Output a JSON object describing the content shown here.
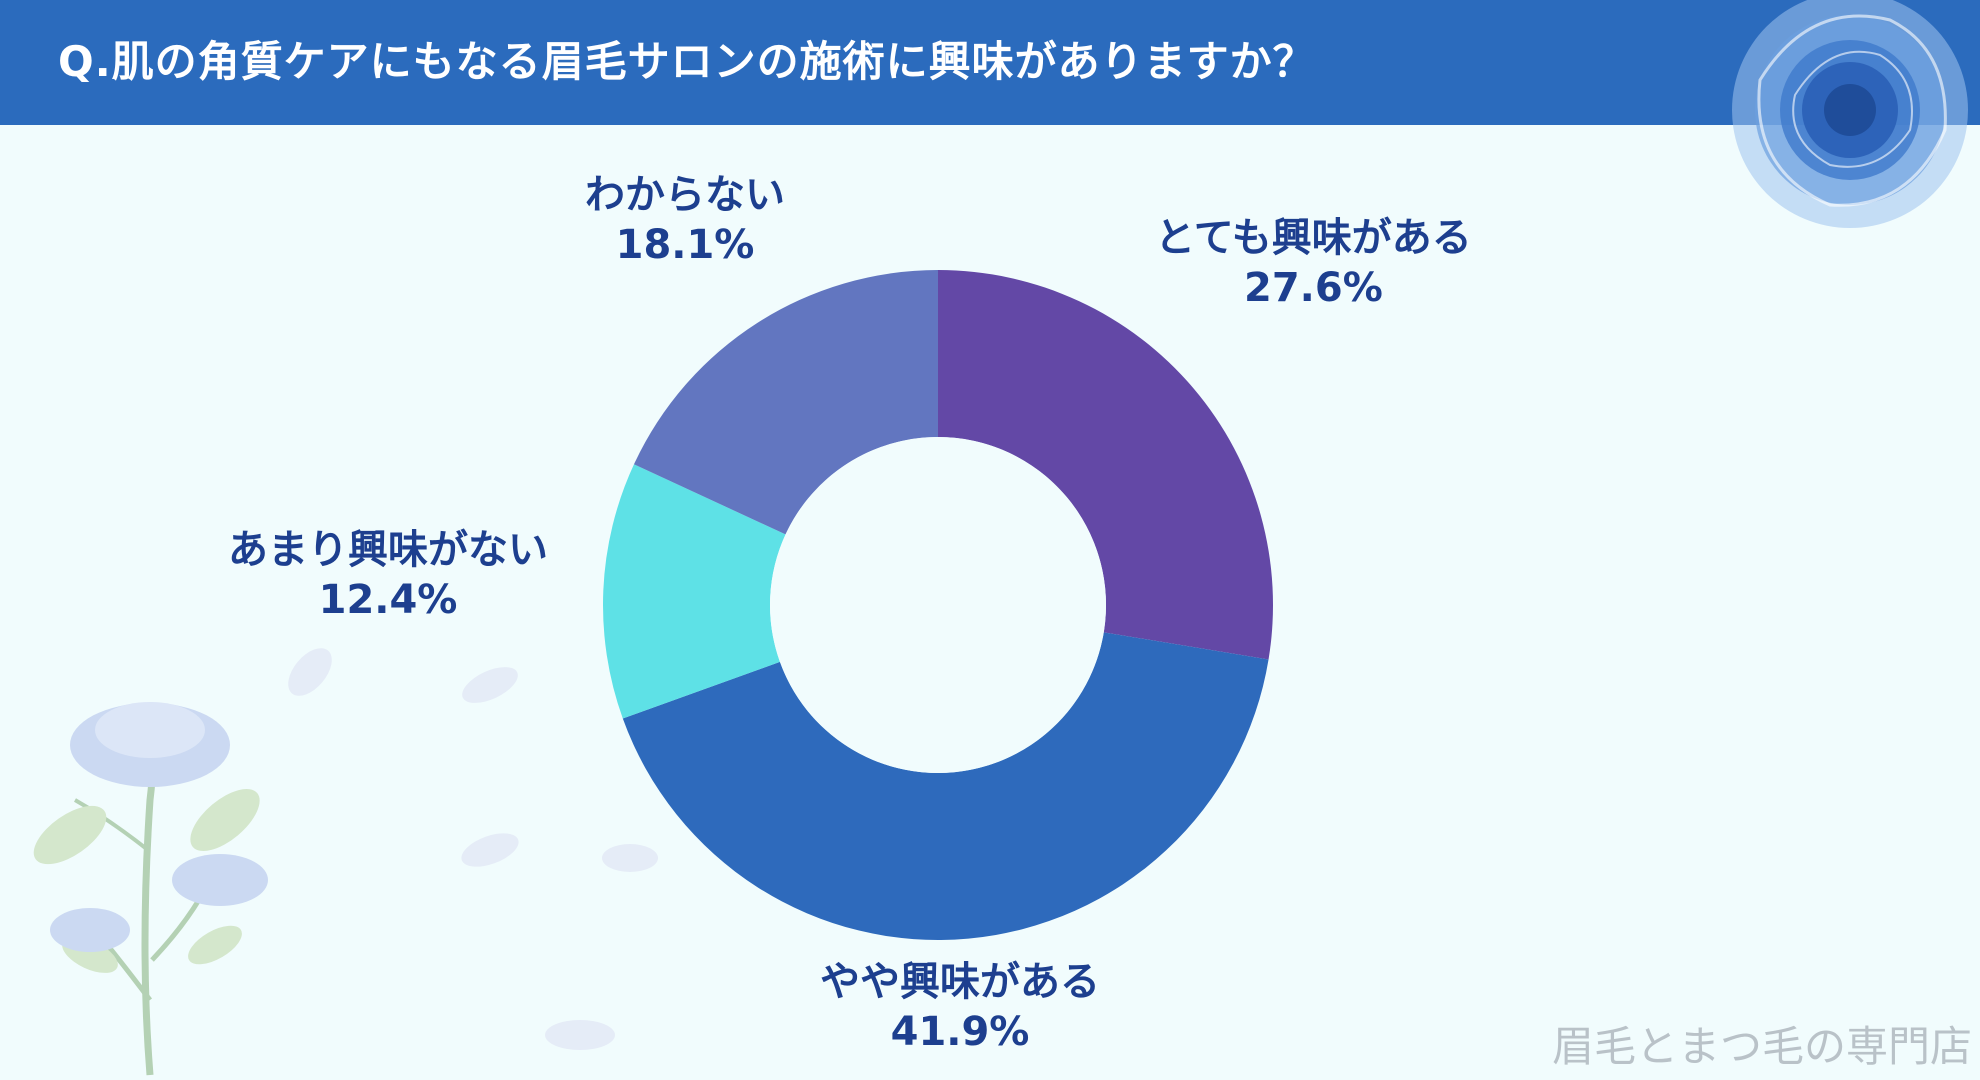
{
  "header": {
    "title": "Q.肌の角質ケアにもなる眉毛サロンの施術に興味がありますか？"
  },
  "chart_data": {
    "type": "pie",
    "donut": true,
    "title": "Q.肌の角質ケアにもなる眉毛サロンの施術に興味がありますか？",
    "slices": [
      {
        "label": "とても興味がある",
        "value": 27.6,
        "value_label": "27.6%",
        "color": "#6348a6"
      },
      {
        "label": "やや興味がある",
        "value": 41.9,
        "value_label": "41.9%",
        "color": "#2e6abc"
      },
      {
        "label": "あまり興味がない",
        "value": 12.4,
        "value_label": "12.4%",
        "color": "#5ee1e6"
      },
      {
        "label": "わからない",
        "value": 18.1,
        "value_label": "18.1%",
        "color": "#6276c0"
      }
    ],
    "start_angle": "12 o'clock",
    "direction": "clockwise",
    "legend": "none"
  },
  "watermark": "眉毛とまつ毛の専門店",
  "decorations": {
    "top_right": "blue-rose-icon",
    "bottom_left": "rose-branch-icon"
  }
}
